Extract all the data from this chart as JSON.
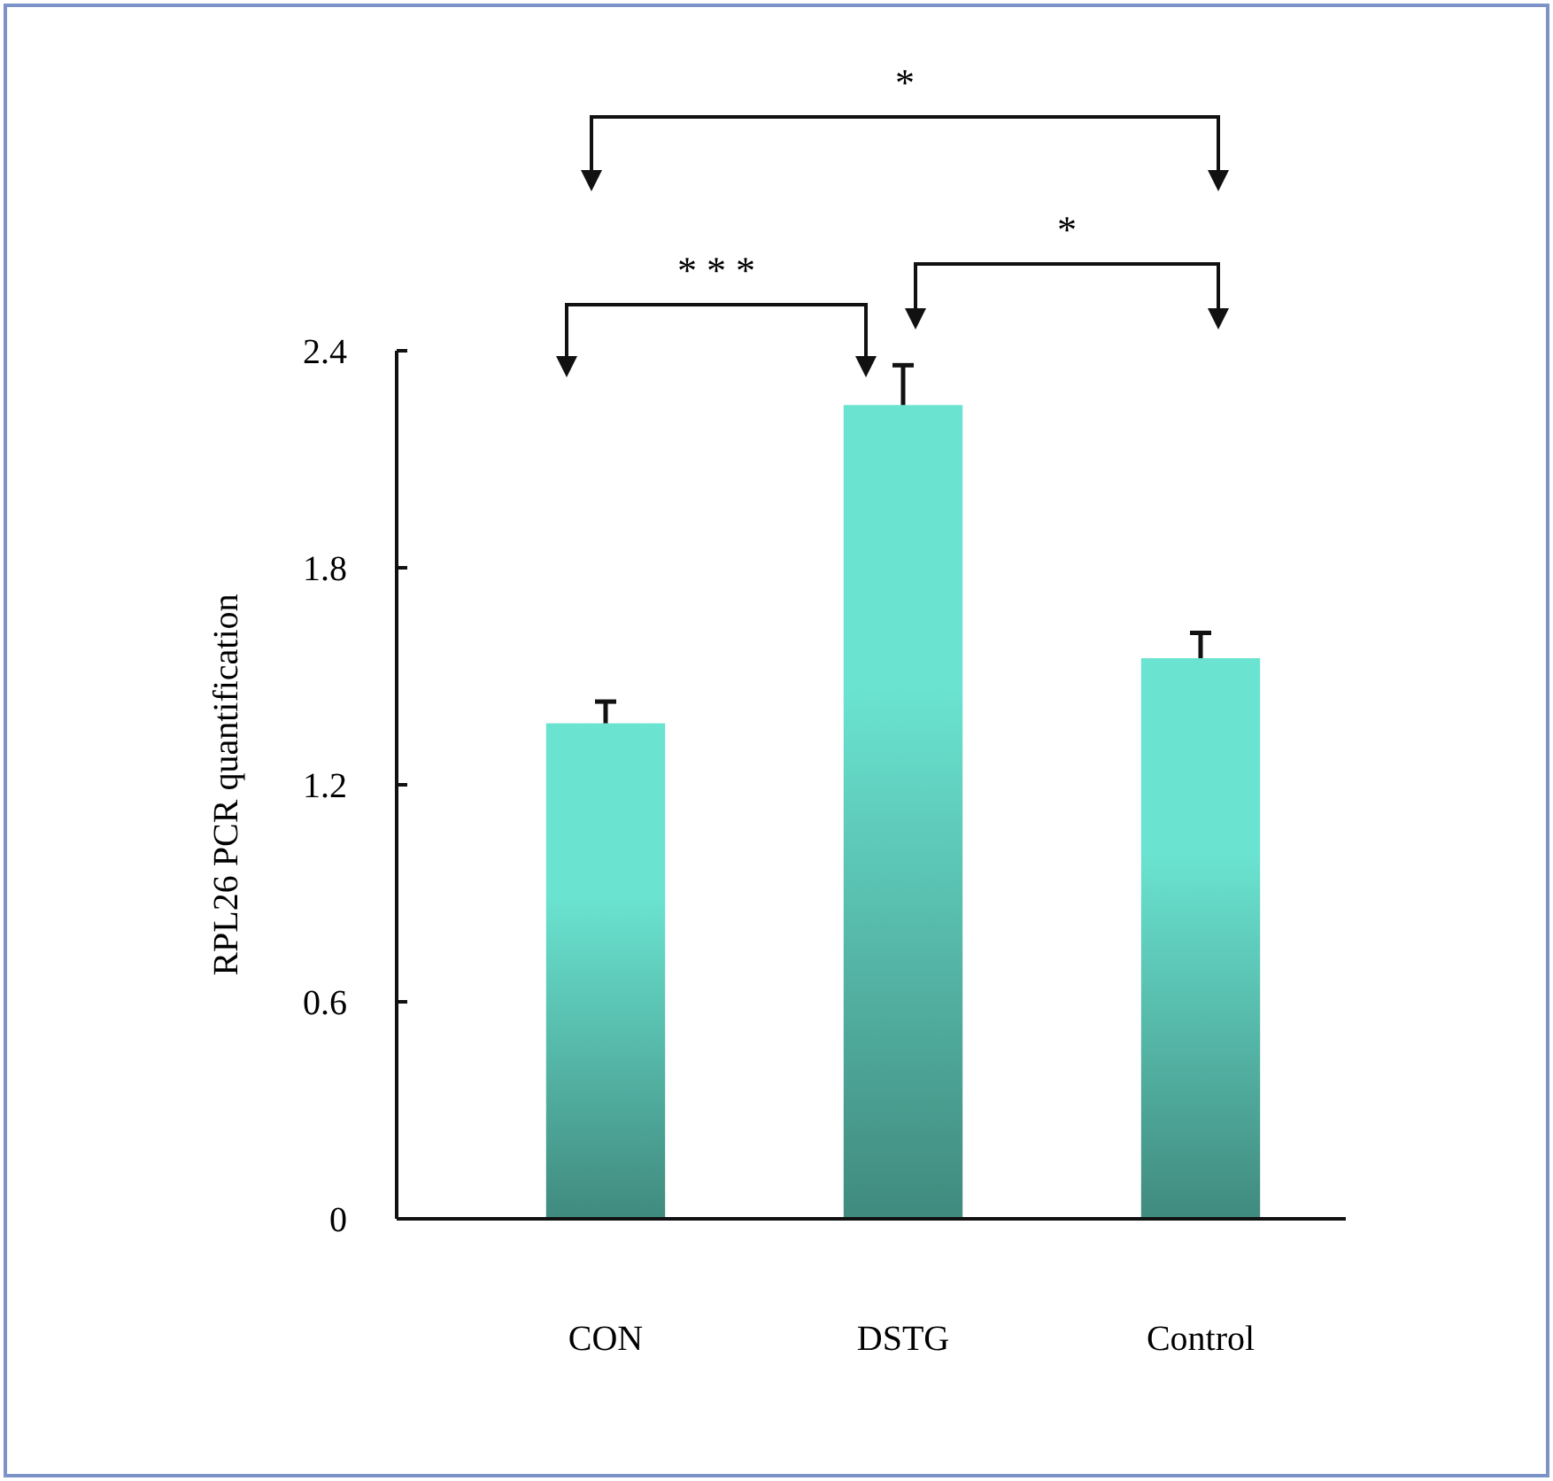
{
  "chart_data": {
    "type": "bar",
    "ylabel": "RPL26 PCR quantification",
    "categories": [
      "CON",
      "DSTG",
      "Control"
    ],
    "values": [
      1.37,
      2.25,
      1.55
    ],
    "errors": [
      0.06,
      0.11,
      0.07
    ],
    "color": "#6ae3d0",
    "ylim": [
      0,
      2.4
    ],
    "yticks": [
      0,
      0.6,
      1.2,
      1.8,
      2.4
    ],
    "annotations": [
      "*",
      "* * *",
      "*"
    ]
  }
}
